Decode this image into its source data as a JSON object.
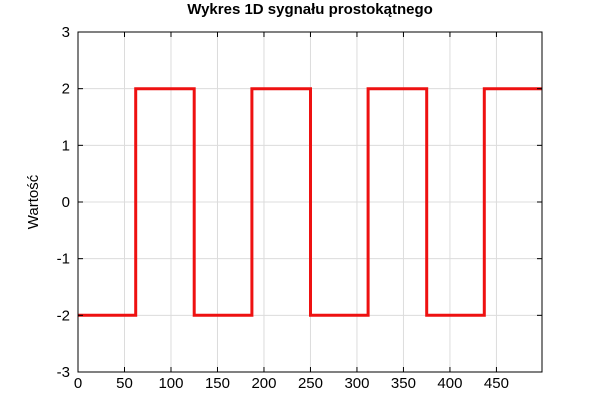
{
  "chart_data": {
    "type": "line",
    "title": "Wykres 1D sygnału prostokątnego",
    "xlabel": "",
    "ylabel": "Wartość",
    "xlim": [
      0,
      499
    ],
    "ylim": [
      -3,
      3
    ],
    "grid": true,
    "x_ticks": [
      0,
      50,
      100,
      150,
      200,
      250,
      300,
      350,
      400,
      450
    ],
    "x_tick_labels": [
      "0",
      "50",
      "100",
      "150",
      "200",
      "250",
      "300",
      "350",
      "400",
      "450"
    ],
    "y_ticks": [
      -3,
      -2,
      -1,
      0,
      1,
      2,
      3
    ],
    "y_tick_labels": [
      "-3",
      "-2",
      "-1",
      "0",
      "1",
      "2",
      "3"
    ],
    "series": [
      {
        "name": "signal",
        "color": "#ee1111",
        "step": true,
        "x": [
          0,
          62,
          62,
          125,
          125,
          187,
          187,
          250,
          250,
          312,
          312,
          375,
          375,
          437,
          437,
          499
        ],
        "y": [
          -2,
          -2,
          2,
          2,
          -2,
          -2,
          2,
          2,
          -2,
          -2,
          2,
          2,
          -2,
          -2,
          2,
          2
        ]
      }
    ]
  }
}
